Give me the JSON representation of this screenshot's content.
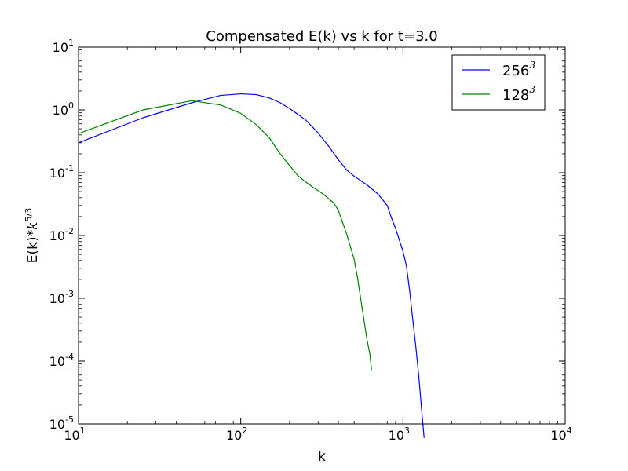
{
  "chart_data": {
    "type": "line",
    "title": "Compensated E(k) vs k for t=3.0",
    "xlabel": "k",
    "ylabel": "E(k)*k^{5/3}",
    "ylabel_base": "E(k)*",
    "ylabel_math": "k",
    "ylabel_exp": "5/3",
    "xscale": "log",
    "yscale": "log",
    "xlim": [
      10,
      10000
    ],
    "ylim": [
      1e-05,
      10
    ],
    "x_ticks": [
      {
        "value": 10,
        "base": "10",
        "exp": "1"
      },
      {
        "value": 100,
        "base": "10",
        "exp": "2"
      },
      {
        "value": 1000,
        "base": "10",
        "exp": "3"
      },
      {
        "value": 10000,
        "base": "10",
        "exp": "4"
      }
    ],
    "y_ticks": [
      {
        "value": 10,
        "base": "10",
        "exp": "1"
      },
      {
        "value": 1,
        "base": "10",
        "exp": "0"
      },
      {
        "value": 0.1,
        "base": "10",
        "exp": "-1"
      },
      {
        "value": 0.01,
        "base": "10",
        "exp": "-2"
      },
      {
        "value": 0.001,
        "base": "10",
        "exp": "-3"
      },
      {
        "value": 0.0001,
        "base": "10",
        "exp": "-4"
      },
      {
        "value": 1e-05,
        "base": "10",
        "exp": "-5"
      }
    ],
    "grid": false,
    "legend_position": "top-right",
    "series": [
      {
        "name": "256",
        "name_exp": "3",
        "color": "#0000ff",
        "points": [
          [
            10,
            0.3
          ],
          [
            25,
            0.75
          ],
          [
            50,
            1.3
          ],
          [
            75,
            1.7
          ],
          [
            100,
            1.8
          ],
          [
            125,
            1.75
          ],
          [
            150,
            1.55
          ],
          [
            175,
            1.3
          ],
          [
            200,
            1.05
          ],
          [
            250,
            0.7
          ],
          [
            300,
            0.43
          ],
          [
            350,
            0.26
          ],
          [
            400,
            0.16
          ],
          [
            450,
            0.11
          ],
          [
            500,
            0.088
          ],
          [
            600,
            0.064
          ],
          [
            700,
            0.046
          ],
          [
            750,
            0.037
          ],
          [
            800,
            0.03
          ],
          [
            850,
            0.019
          ],
          [
            900,
            0.013
          ],
          [
            1000,
            0.0056
          ],
          [
            1050,
            0.0033
          ],
          [
            1100,
            0.0013
          ],
          [
            1150,
            0.00045
          ],
          [
            1200,
            0.00017
          ],
          [
            1250,
            6e-05
          ],
          [
            1300,
            1.8e-05
          ],
          [
            1350,
            6e-06
          ]
        ]
      },
      {
        "name": "128",
        "name_exp": "3",
        "color": "#008000",
        "points": [
          [
            10,
            0.42
          ],
          [
            25,
            1.0
          ],
          [
            50,
            1.4
          ],
          [
            75,
            1.2
          ],
          [
            100,
            0.88
          ],
          [
            125,
            0.58
          ],
          [
            150,
            0.36
          ],
          [
            175,
            0.2
          ],
          [
            200,
            0.13
          ],
          [
            225,
            0.09
          ],
          [
            250,
            0.072
          ],
          [
            275,
            0.06
          ],
          [
            300,
            0.052
          ],
          [
            325,
            0.045
          ],
          [
            350,
            0.038
          ],
          [
            375,
            0.033
          ],
          [
            400,
            0.025
          ],
          [
            425,
            0.016
          ],
          [
            450,
            0.0105
          ],
          [
            475,
            0.0065
          ],
          [
            500,
            0.0042
          ],
          [
            525,
            0.0021
          ],
          [
            550,
            0.00095
          ],
          [
            575,
            0.00045
          ],
          [
            600,
            0.00022
          ],
          [
            625,
            0.00013
          ],
          [
            640,
            7.2e-05
          ]
        ]
      }
    ]
  }
}
